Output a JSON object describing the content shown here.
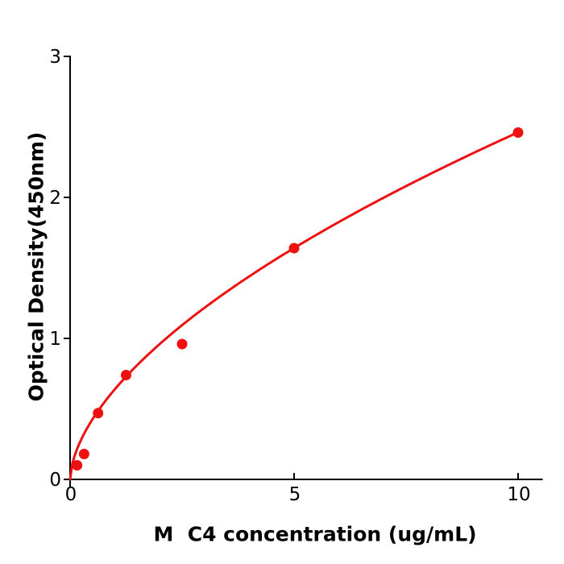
{
  "chart_data": {
    "type": "scatter",
    "title": "",
    "xlabel": "M  C4 concentration (ug/mL)",
    "ylabel": "Optical Density(450nm)",
    "x": [
      0.156,
      0.3125,
      0.625,
      1.25,
      2.5,
      5,
      10
    ],
    "y": [
      0.1,
      0.18,
      0.47,
      0.74,
      0.96,
      1.64,
      2.46
    ],
    "xticks": [
      0,
      5,
      10
    ],
    "yticks": [
      0,
      1,
      2,
      3
    ],
    "xtick_labels": [
      "0",
      "5",
      "10"
    ],
    "ytick_labels": [
      "0",
      "1",
      "2",
      "3"
    ],
    "xlim": [
      0,
      10.55
    ],
    "ylim": [
      0,
      3
    ],
    "grid": false,
    "legend": "none",
    "fit_curve": {
      "type": "power",
      "a": 0.64,
      "b": 0.585,
      "x_start": 0,
      "x_end": 10
    },
    "point_color": "#ee1111",
    "line_color": "#ee1111",
    "axis_color": "#000000",
    "background_color": "#ffffff",
    "marker_radius": 6.5,
    "line_width": 3
  }
}
